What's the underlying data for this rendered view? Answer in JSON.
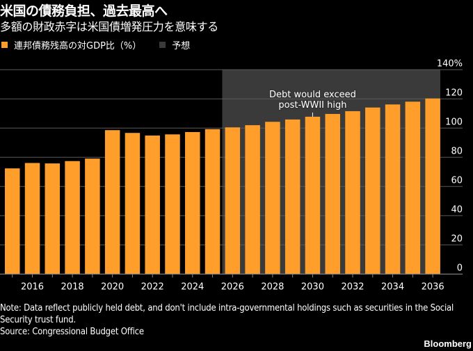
{
  "header": {
    "title": "米国の債務負担、過去最高へ",
    "subtitle": "多額の財政赤字は米国債増発圧力を意味する"
  },
  "legend": [
    {
      "label": "連邦債務残高の対GDP比（%）",
      "color": "#FF9E2A"
    },
    {
      "label": "予想",
      "color": "#3A3A3A"
    }
  ],
  "chart_data": {
    "type": "bar",
    "title": "米国の債務負担、過去最高へ",
    "subtitle": "多額の財政赤字は米国債増発圧力を意味する",
    "xlabel": "",
    "ylabel": "",
    "categories": [
      "2015",
      "2016",
      "2017",
      "2018",
      "2019",
      "2020",
      "2021",
      "2022",
      "2023",
      "2024",
      "2025",
      "2026",
      "2027",
      "2028",
      "2029",
      "2030",
      "2031",
      "2032",
      "2033",
      "2034",
      "2035",
      "2036"
    ],
    "series": [
      {
        "name": "連邦債務残高の対GDP比（%）",
        "color": "#FF9E2A",
        "values": [
          72.4,
          76.1,
          75.8,
          77.4,
          79.1,
          98.6,
          96.7,
          94.9,
          95.7,
          97.3,
          99.3,
          100.5,
          102.0,
          104.3,
          105.9,
          107.8,
          109.7,
          111.6,
          114.1,
          116.2,
          118.1,
          120.3
        ]
      }
    ],
    "forecast_range": {
      "from": "2026",
      "to": "2036",
      "label": "予想",
      "color": "#3A3A3A"
    },
    "x_tick_labels": [
      "2016",
      "2018",
      "2020",
      "2022",
      "2024",
      "2026",
      "2028",
      "2030",
      "2032",
      "2034",
      "2036"
    ],
    "y_ticks": [
      0,
      20,
      40,
      60,
      80,
      100,
      120,
      140
    ],
    "y_tick_labels": [
      "0",
      "20",
      "40",
      "60",
      "80",
      "100",
      "120",
      "140%"
    ],
    "ylim": [
      0,
      140
    ],
    "grid": true,
    "y_axis_position": "right",
    "legend_position": "top-left",
    "annotations": [
      {
        "text_lines": [
          "Debt would exceed",
          "post-WWII high"
        ],
        "target": "2030"
      }
    ]
  },
  "footer": {
    "note": "Note: Data reflect publicly held debt, and don't include intra-governmental holdings such as securities in the Social Security trust fund.",
    "source": "Source: Congressional Budget Office",
    "brand": "Bloomberg"
  }
}
